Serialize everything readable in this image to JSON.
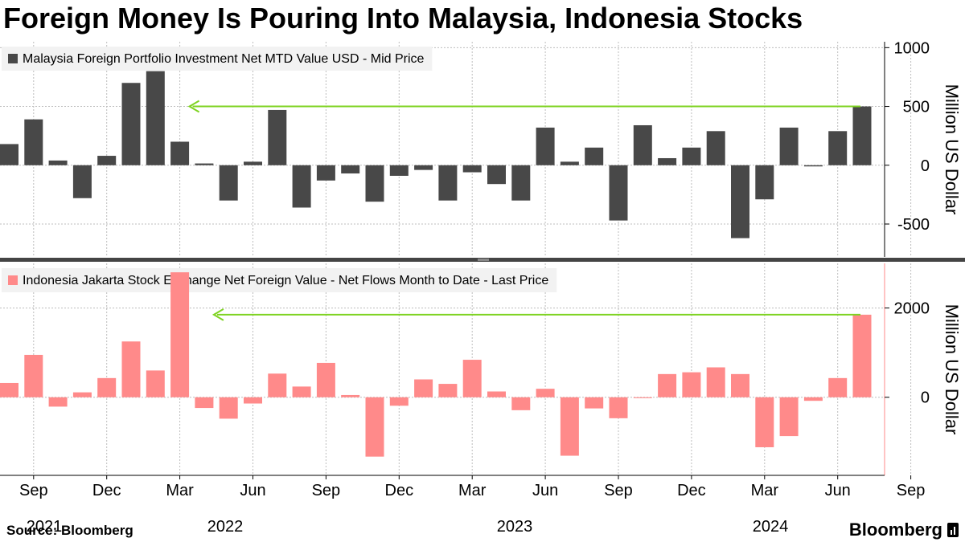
{
  "title": "Foreign Money Is Pouring Into Malaysia, Indonesia Stocks",
  "source": "Source: Bloomberg",
  "brand": "Bloomberg",
  "colors": {
    "malaysia": "#484848",
    "indonesia": "#ff8a8a",
    "arrow": "#7ed321",
    "grid": "#bdbdbd"
  },
  "x_axis": {
    "month_labels": [
      "Sep",
      "Dec",
      "Mar",
      "Jun",
      "Sep",
      "Dec",
      "Mar",
      "Jun",
      "Sep",
      "Dec",
      "Mar",
      "Jun",
      "Sep"
    ],
    "year_labels": [
      "2021",
      "2022",
      "2023",
      "2024"
    ]
  },
  "chart_data": [
    {
      "type": "bar",
      "legend": "Malaysia Foreign Portfolio Investment Net MTD Value USD - Mid Price",
      "ylabel": "Million US Dollar",
      "yticks": [
        -500,
        0,
        500,
        1000
      ],
      "ylim": [
        -780,
        1050
      ],
      "grid": true,
      "categories": [
        "2021-08",
        "2021-09",
        "2021-10",
        "2021-11",
        "2021-12",
        "2022-01",
        "2022-02",
        "2022-03",
        "2022-04",
        "2022-05",
        "2022-06",
        "2022-07",
        "2022-08",
        "2022-09",
        "2022-10",
        "2022-11",
        "2022-12",
        "2023-01",
        "2023-02",
        "2023-03",
        "2023-04",
        "2023-05",
        "2023-06",
        "2023-07",
        "2023-08",
        "2023-09",
        "2023-10",
        "2023-11",
        "2023-12",
        "2024-01",
        "2024-02",
        "2024-03",
        "2024-04",
        "2024-05",
        "2024-06",
        "2024-07",
        "2024-08"
      ],
      "values": [
        180,
        390,
        40,
        -280,
        80,
        700,
        800,
        200,
        15,
        -300,
        30,
        470,
        -360,
        -130,
        -70,
        -310,
        -90,
        -40,
        -300,
        -60,
        -160,
        -300,
        320,
        30,
        150,
        -470,
        340,
        60,
        150,
        290,
        -620,
        -290,
        320,
        -10,
        290,
        500,
        null
      ],
      "annotation": {
        "type": "arrow",
        "from": "2024-07",
        "to": "2022-03",
        "y": 500
      }
    },
    {
      "type": "bar",
      "legend": "Indonesia Jakarta Stock Exchange Net Foreign Value - Net Flows Month to Date - Last Price",
      "ylabel": "Million US Dollar",
      "yticks": [
        0,
        2000
      ],
      "ylim": [
        -1750,
        3000
      ],
      "grid": true,
      "categories": [
        "2021-08",
        "2021-09",
        "2021-10",
        "2021-11",
        "2021-12",
        "2022-01",
        "2022-02",
        "2022-03",
        "2022-04",
        "2022-05",
        "2022-06",
        "2022-07",
        "2022-08",
        "2022-09",
        "2022-10",
        "2022-11",
        "2022-12",
        "2023-01",
        "2023-02",
        "2023-03",
        "2023-04",
        "2023-05",
        "2023-06",
        "2023-07",
        "2023-08",
        "2023-09",
        "2023-10",
        "2023-11",
        "2023-12",
        "2024-01",
        "2024-02",
        "2024-03",
        "2024-04",
        "2024-05",
        "2024-06",
        "2024-07",
        "2024-08"
      ],
      "values": [
        320,
        950,
        -210,
        110,
        430,
        1250,
        600,
        2800,
        -240,
        -480,
        -140,
        530,
        240,
        770,
        50,
        -1330,
        -190,
        400,
        300,
        840,
        130,
        -290,
        190,
        -1310,
        -250,
        -470,
        -20,
        520,
        560,
        670,
        520,
        -1120,
        -870,
        -80,
        430,
        1850,
        null
      ],
      "annotation": {
        "type": "arrow",
        "from": "2024-07",
        "to": "2022-04",
        "y": 1850
      }
    }
  ]
}
